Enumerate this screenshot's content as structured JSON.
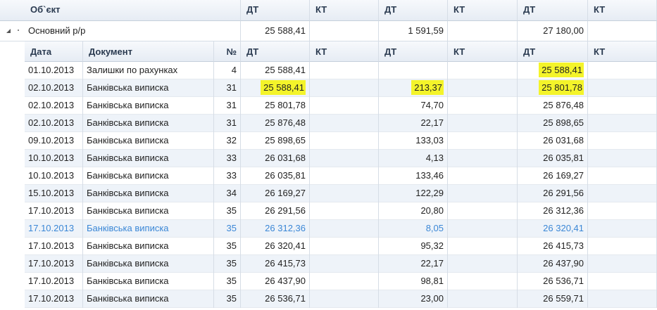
{
  "header": {
    "object": "Об`єкт",
    "columns": [
      "ДТ",
      "КТ",
      "ДТ",
      "КТ",
      "ДТ",
      "КТ"
    ]
  },
  "group": {
    "label": "Основний р/р",
    "debits": [
      "25 588,41",
      "1 591,59",
      "27 180,00"
    ]
  },
  "subheader": {
    "columns": [
      "Дата",
      "Документ",
      "№",
      "ДТ",
      "КТ",
      "ДТ",
      "КТ",
      "ДТ",
      "КТ"
    ]
  },
  "rows": [
    {
      "date": "01.10.2013",
      "document": "Залишки по рахунках",
      "number": "4",
      "debits": [
        "25 588,41",
        null,
        "25 588,41"
      ],
      "highlight": [
        2
      ]
    },
    {
      "date": "02.10.2013",
      "document": "Банківська виписка",
      "number": "31",
      "debits": [
        "25 588,41",
        "213,37",
        "25 801,78"
      ],
      "highlight": [
        0,
        1,
        2
      ]
    },
    {
      "date": "02.10.2013",
      "document": "Банківська виписка",
      "number": "31",
      "debits": [
        "25 801,78",
        "74,70",
        "25 876,48"
      ]
    },
    {
      "date": "02.10.2013",
      "document": "Банківська виписка",
      "number": "31",
      "debits": [
        "25 876,48",
        "22,17",
        "25 898,65"
      ]
    },
    {
      "date": "09.10.2013",
      "document": "Банківська виписка",
      "number": "32",
      "debits": [
        "25 898,65",
        "133,03",
        "26 031,68"
      ]
    },
    {
      "date": "10.10.2013",
      "document": "Банківська виписка",
      "number": "33",
      "debits": [
        "26 031,68",
        "4,13",
        "26 035,81"
      ]
    },
    {
      "date": "10.10.2013",
      "document": "Банківська виписка",
      "number": "33",
      "debits": [
        "26 035,81",
        "133,46",
        "26 169,27"
      ]
    },
    {
      "date": "15.10.2013",
      "document": "Банківська виписка",
      "number": "34",
      "debits": [
        "26 169,27",
        "122,29",
        "26 291,56"
      ]
    },
    {
      "date": "17.10.2013",
      "document": "Банківська виписка",
      "number": "35",
      "debits": [
        "26 291,56",
        "20,80",
        "26 312,36"
      ]
    },
    {
      "date": "17.10.2013",
      "document": "Банківська виписка",
      "number": "35",
      "debits": [
        "26 312,36",
        "8,05",
        "26 320,41"
      ],
      "selected": true
    },
    {
      "date": "17.10.2013",
      "document": "Банківська виписка",
      "number": "35",
      "debits": [
        "26 320,41",
        "95,32",
        "26 415,73"
      ]
    },
    {
      "date": "17.10.2013",
      "document": "Банківська виписка",
      "number": "35",
      "debits": [
        "26 415,73",
        "22,17",
        "26 437,90"
      ]
    },
    {
      "date": "17.10.2013",
      "document": "Банківська виписка",
      "number": "35",
      "debits": [
        "26 437,90",
        "98,81",
        "26 536,71"
      ]
    },
    {
      "date": "17.10.2013",
      "document": "Банківська виписка",
      "number": "35",
      "debits": [
        "26 536,71",
        "23,00",
        "26 559,71"
      ]
    }
  ]
}
